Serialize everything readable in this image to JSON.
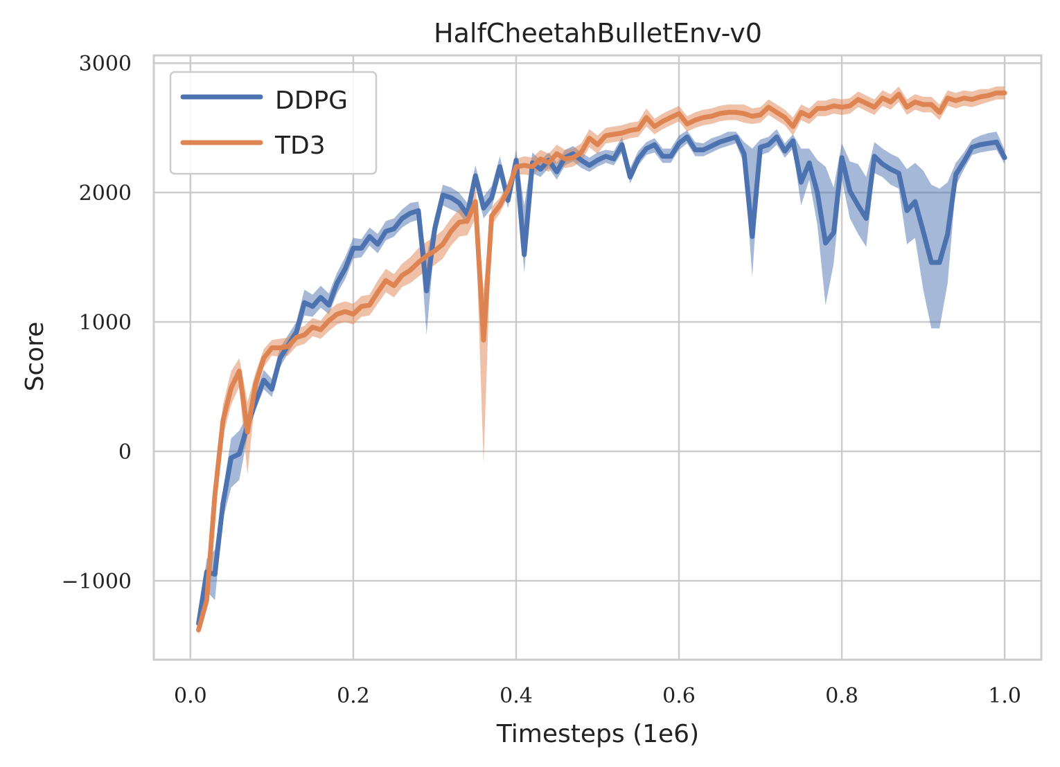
{
  "chart_data": {
    "type": "line",
    "title": "HalfCheetahBulletEnv-v0",
    "xlabel": "Timesteps (1e6)",
    "ylabel": "Score",
    "xlim": [
      -0.045,
      1.045
    ],
    "ylim": [
      -1610,
      3060
    ],
    "xticks": [
      0.0,
      0.2,
      0.4,
      0.6,
      0.8,
      1.0
    ],
    "xtick_labels": [
      "0.0",
      "0.2",
      "0.4",
      "0.6",
      "0.8",
      "1.0"
    ],
    "yticks": [
      -1000,
      0,
      1000,
      2000,
      3000
    ],
    "ytick_labels": [
      "−1000",
      "0",
      "1000",
      "2000",
      "3000"
    ],
    "grid": true,
    "legend_position": "top-left",
    "x": [
      0.01,
      0.02,
      0.03,
      0.04,
      0.05,
      0.06,
      0.07,
      0.08,
      0.09,
      0.1,
      0.11,
      0.12,
      0.13,
      0.14,
      0.15,
      0.16,
      0.17,
      0.18,
      0.19,
      0.2,
      0.21,
      0.22,
      0.23,
      0.24,
      0.25,
      0.26,
      0.27,
      0.28,
      0.29,
      0.3,
      0.31,
      0.32,
      0.33,
      0.34,
      0.35,
      0.36,
      0.37,
      0.38,
      0.39,
      0.4,
      0.41,
      0.42,
      0.43,
      0.44,
      0.45,
      0.46,
      0.47,
      0.48,
      0.49,
      0.5,
      0.51,
      0.52,
      0.53,
      0.54,
      0.55,
      0.56,
      0.57,
      0.58,
      0.59,
      0.6,
      0.61,
      0.62,
      0.63,
      0.64,
      0.65,
      0.66,
      0.67,
      0.68,
      0.69,
      0.7,
      0.71,
      0.72,
      0.73,
      0.74,
      0.75,
      0.76,
      0.77,
      0.78,
      0.79,
      0.8,
      0.81,
      0.82,
      0.83,
      0.84,
      0.85,
      0.86,
      0.87,
      0.88,
      0.89,
      0.9,
      0.91,
      0.92,
      0.93,
      0.94,
      0.95,
      0.96,
      0.97,
      0.98,
      0.99,
      1.0
    ],
    "series": [
      {
        "name": "DDPG",
        "color": "#4c72b0",
        "values": [
          -1330,
          -930,
          -950,
          -400,
          -50,
          -20,
          200,
          380,
          550,
          480,
          720,
          820,
          920,
          1150,
          1120,
          1190,
          1130,
          1300,
          1410,
          1570,
          1570,
          1660,
          1600,
          1700,
          1720,
          1800,
          1840,
          1860,
          1240,
          1720,
          1980,
          1960,
          1920,
          1830,
          2130,
          1880,
          1960,
          2200,
          1940,
          2250,
          1520,
          2230,
          2180,
          2250,
          2160,
          2270,
          2300,
          2250,
          2210,
          2250,
          2280,
          2260,
          2370,
          2120,
          2260,
          2340,
          2370,
          2280,
          2280,
          2380,
          2430,
          2330,
          2330,
          2360,
          2390,
          2410,
          2430,
          2300,
          1660,
          2350,
          2370,
          2430,
          2320,
          2400,
          2080,
          2230,
          2000,
          1610,
          1690,
          2270,
          2010,
          1900,
          1800,
          2280,
          2220,
          2180,
          2150,
          1860,
          1930,
          1700,
          1460,
          1460,
          1680,
          2140,
          2240,
          2350,
          2370,
          2380,
          2390,
          2270
        ],
        "lower": [
          -1400,
          -1080,
          -1150,
          -520,
          -280,
          -220,
          120,
          320,
          480,
          420,
          650,
          760,
          860,
          1050,
          1040,
          1110,
          1060,
          1220,
          1330,
          1490,
          1500,
          1590,
          1530,
          1630,
          1660,
          1730,
          1770,
          1790,
          900,
          1630,
          1900,
          1870,
          1840,
          1750,
          2060,
          1800,
          1880,
          2120,
          1880,
          2170,
          1380,
          2150,
          2120,
          2190,
          2100,
          2210,
          2240,
          2190,
          2160,
          2200,
          2230,
          2210,
          2310,
          2070,
          2210,
          2290,
          2310,
          2230,
          2230,
          2330,
          2380,
          2280,
          2280,
          2310,
          2340,
          2360,
          2380,
          2220,
          1350,
          2290,
          2310,
          2370,
          2270,
          2340,
          1900,
          2100,
          1750,
          1130,
          1450,
          2100,
          1800,
          1680,
          1580,
          2150,
          2120,
          2060,
          2030,
          1600,
          1650,
          1250,
          950,
          950,
          1300,
          2050,
          2180,
          2290,
          2310,
          2320,
          2330,
          2220
        ],
        "upper": [
          -1260,
          -830,
          -760,
          -300,
          100,
          160,
          280,
          450,
          630,
          560,
          800,
          900,
          1000,
          1250,
          1210,
          1280,
          1220,
          1380,
          1500,
          1650,
          1640,
          1730,
          1680,
          1780,
          1800,
          1870,
          1920,
          1930,
          1500,
          1810,
          2060,
          2040,
          2000,
          1920,
          2210,
          1970,
          2050,
          2280,
          2010,
          2330,
          1900,
          2310,
          2250,
          2310,
          2230,
          2330,
          2360,
          2310,
          2270,
          2310,
          2330,
          2320,
          2430,
          2190,
          2320,
          2390,
          2420,
          2340,
          2340,
          2440,
          2480,
          2390,
          2380,
          2420,
          2440,
          2470,
          2470,
          2390,
          2340,
          2410,
          2430,
          2490,
          2380,
          2450,
          2340,
          2340,
          2250,
          2200,
          2040,
          2380,
          2240,
          2220,
          2120,
          2390,
          2340,
          2300,
          2270,
          2180,
          2230,
          2170,
          2060,
          2030,
          2080,
          2230,
          2310,
          2410,
          2440,
          2460,
          2470,
          2330
        ]
      },
      {
        "name": "TD3",
        "color": "#dd8452",
        "values": [
          -1380,
          -1150,
          -340,
          240,
          490,
          620,
          150,
          520,
          720,
          800,
          800,
          810,
          880,
          900,
          960,
          940,
          1010,
          1060,
          1080,
          1060,
          1120,
          1130,
          1230,
          1320,
          1280,
          1360,
          1400,
          1460,
          1510,
          1550,
          1600,
          1700,
          1770,
          1780,
          1930,
          860,
          1820,
          1900,
          2020,
          2200,
          2210,
          2200,
          2260,
          2230,
          2300,
          2260,
          2270,
          2310,
          2420,
          2370,
          2440,
          2450,
          2460,
          2480,
          2490,
          2580,
          2510,
          2550,
          2580,
          2610,
          2530,
          2560,
          2580,
          2590,
          2610,
          2620,
          2620,
          2610,
          2590,
          2600,
          2660,
          2620,
          2580,
          2510,
          2620,
          2590,
          2650,
          2650,
          2670,
          2660,
          2670,
          2720,
          2690,
          2660,
          2730,
          2700,
          2760,
          2660,
          2700,
          2680,
          2680,
          2620,
          2730,
          2710,
          2730,
          2720,
          2740,
          2750,
          2770,
          2770
        ],
        "lower": [
          -1420,
          -1220,
          -480,
          120,
          360,
          500,
          -180,
          430,
          650,
          740,
          730,
          740,
          810,
          830,
          890,
          870,
          930,
          980,
          1000,
          980,
          1040,
          1050,
          1140,
          1230,
          1190,
          1270,
          1300,
          1350,
          1400,
          1440,
          1490,
          1590,
          1660,
          1670,
          1800,
          -90,
          1750,
          1840,
          1970,
          2140,
          2140,
          2130,
          2190,
          2160,
          2230,
          2190,
          2200,
          2240,
          2350,
          2300,
          2380,
          2390,
          2400,
          2420,
          2430,
          2510,
          2450,
          2490,
          2520,
          2550,
          2470,
          2500,
          2520,
          2530,
          2550,
          2560,
          2560,
          2540,
          2530,
          2540,
          2600,
          2560,
          2520,
          2440,
          2560,
          2530,
          2590,
          2590,
          2610,
          2600,
          2610,
          2660,
          2630,
          2600,
          2670,
          2640,
          2700,
          2600,
          2640,
          2620,
          2620,
          2560,
          2670,
          2650,
          2670,
          2660,
          2680,
          2700,
          2720,
          2720
        ],
        "upper": [
          -1330,
          -1080,
          -200,
          360,
          620,
          720,
          380,
          610,
          790,
          860,
          870,
          880,
          950,
          970,
          1030,
          1010,
          1090,
          1140,
          1160,
          1140,
          1200,
          1210,
          1320,
          1410,
          1370,
          1450,
          1500,
          1570,
          1620,
          1660,
          1710,
          1800,
          1870,
          1880,
          2050,
          1250,
          1890,
          1960,
          2070,
          2260,
          2280,
          2270,
          2330,
          2300,
          2370,
          2330,
          2340,
          2380,
          2490,
          2440,
          2500,
          2510,
          2520,
          2540,
          2550,
          2650,
          2570,
          2610,
          2640,
          2670,
          2590,
          2620,
          2640,
          2650,
          2670,
          2680,
          2680,
          2680,
          2650,
          2660,
          2720,
          2680,
          2640,
          2580,
          2680,
          2650,
          2710,
          2710,
          2730,
          2720,
          2730,
          2780,
          2750,
          2720,
          2790,
          2760,
          2820,
          2720,
          2760,
          2740,
          2740,
          2680,
          2790,
          2770,
          2790,
          2780,
          2800,
          2800,
          2820,
          2820
        ]
      }
    ]
  }
}
